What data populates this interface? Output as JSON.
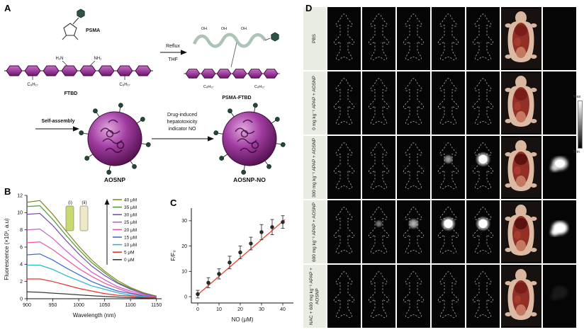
{
  "panel_labels": {
    "a": "A",
    "b": "B",
    "c": "C",
    "d": "D"
  },
  "panel_a": {
    "psma": "PSMA",
    "ftbd": "FTBD",
    "psma_ftbd": "PSMA-FTBD",
    "reflux": "Reflux",
    "thf": "THF",
    "h2n": "H₂N",
    "nh2": "NH₂",
    "oh": "OH",
    "c8h17": "C₈H₁₇",
    "self_assembly": "Self-assembly",
    "no_line1": "Drug-induced",
    "no_line2": "hepatotoxicity",
    "no_line3": "indicator NO",
    "aosnp": "AOSNP",
    "aosnp_no": "AOSNP-NO"
  },
  "chart_data": [
    {
      "id": "fluorescence-spectra",
      "type": "line",
      "title": "",
      "xlabel": "Wavelength (nm)",
      "ylabel": "Fluorescence (×10³, a.u)",
      "xlim": [
        900,
        1160
      ],
      "ylim": [
        0,
        12
      ],
      "xticks": [
        900,
        950,
        1000,
        1050,
        1100,
        1150
      ],
      "yticks": [
        0,
        2,
        4,
        6,
        8,
        10,
        12
      ],
      "grid": false,
      "legend_position": "top-right",
      "x": [
        900,
        925,
        950,
        975,
        1000,
        1025,
        1050,
        1075,
        1100,
        1125,
        1150
      ],
      "series": [
        {
          "name": "40 μM",
          "color": "#8a8b1f",
          "values": [
            11.2,
            11.4,
            9.8,
            7.9,
            6.1,
            4.5,
            3.2,
            2.1,
            1.3,
            0.7,
            0.3
          ]
        },
        {
          "name": "35 μM",
          "color": "#4d9e3a",
          "values": [
            10.7,
            10.8,
            9.2,
            7.4,
            5.7,
            4.2,
            3.0,
            1.9,
            1.2,
            0.6,
            0.3
          ]
        },
        {
          "name": "30 μM",
          "color": "#7a4fb5",
          "values": [
            9.8,
            9.9,
            8.5,
            6.8,
            5.2,
            3.8,
            2.7,
            1.8,
            1.1,
            0.6,
            0.25
          ]
        },
        {
          "name": "25 μM",
          "color": "#c95fd0",
          "values": [
            8.0,
            8.1,
            7.0,
            5.6,
            4.3,
            3.1,
            2.2,
            1.4,
            0.9,
            0.5,
            0.2
          ]
        },
        {
          "name": "20 μM",
          "color": "#e957a0",
          "values": [
            6.5,
            6.6,
            5.7,
            4.6,
            3.5,
            2.6,
            1.8,
            1.2,
            0.7,
            0.4,
            0.2
          ]
        },
        {
          "name": "15 μM",
          "color": "#3b6fd4",
          "values": [
            5.1,
            5.2,
            4.5,
            3.6,
            2.8,
            2.0,
            1.4,
            0.9,
            0.6,
            0.3,
            0.15
          ]
        },
        {
          "name": "10 μM",
          "color": "#2ab8c9",
          "values": [
            3.9,
            3.9,
            3.4,
            2.7,
            2.1,
            1.5,
            1.1,
            0.7,
            0.4,
            0.25,
            0.1
          ]
        },
        {
          "name": "5 μM",
          "color": "#e8352c",
          "values": [
            2.3,
            2.3,
            2.0,
            1.6,
            1.2,
            0.9,
            0.6,
            0.4,
            0.3,
            0.15,
            0.08
          ]
        },
        {
          "name": "0 μM",
          "color": "#3a3a3a",
          "values": [
            0.8,
            0.75,
            0.65,
            0.55,
            0.45,
            0.35,
            0.27,
            0.2,
            0.13,
            0.08,
            0.05
          ]
        }
      ],
      "inset": {
        "labels": [
          "(i)",
          "(ii)"
        ],
        "cuvette_colors": [
          "#c9d96f",
          "#eee8c9"
        ]
      }
    },
    {
      "id": "no-calibration",
      "type": "scatter",
      "title": "",
      "xlabel": "NO (μM)",
      "ylabel": "F/F₀",
      "xlim": [
        -3,
        45
      ],
      "ylim": [
        -2.5,
        35
      ],
      "xticks": [
        0,
        10,
        20,
        30,
        40
      ],
      "yticks": [
        0,
        10,
        20,
        30
      ],
      "grid": false,
      "x": [
        0,
        5,
        10,
        15,
        20,
        25,
        30,
        35,
        40
      ],
      "y": [
        1,
        5.5,
        9,
        13.5,
        17.5,
        21,
        25.5,
        27.5,
        29.5
      ],
      "yerr": [
        1.5,
        2,
        2,
        2.5,
        2.5,
        2.5,
        3,
        3,
        2.5
      ],
      "point_color": "#2b2b2b",
      "fit": {
        "x0": 0,
        "y0": 0.8,
        "x1": 41,
        "y1": 30.5,
        "color": "#e8442e"
      }
    }
  ],
  "panel_d": {
    "rows": [
      {
        "label": "PBS",
        "glow": [
          0,
          0,
          0,
          0,
          0
        ],
        "nir": 0
      },
      {
        "label": "0 mg kg⁻¹ APAP + AOSNP",
        "glow": [
          0,
          0,
          0,
          0,
          0
        ],
        "nir": 0
      },
      {
        "label": "300 mg kg⁻¹ APAP + AOSNP",
        "glow": [
          0,
          0,
          0,
          0.45,
          1
        ],
        "nir": 0.85
      },
      {
        "label": "600 mg kg⁻¹ APAP + AOSNP",
        "glow": [
          0,
          0.25,
          0.6,
          1,
          1
        ],
        "nir": 1
      },
      {
        "label": "NAC + 600 mg kg⁻¹ APAP + AOSNP",
        "glow": [
          0,
          0,
          0,
          0,
          0
        ],
        "nir": 0.08
      }
    ],
    "colorbar": {
      "max": "Max",
      "min": "Min"
    }
  }
}
